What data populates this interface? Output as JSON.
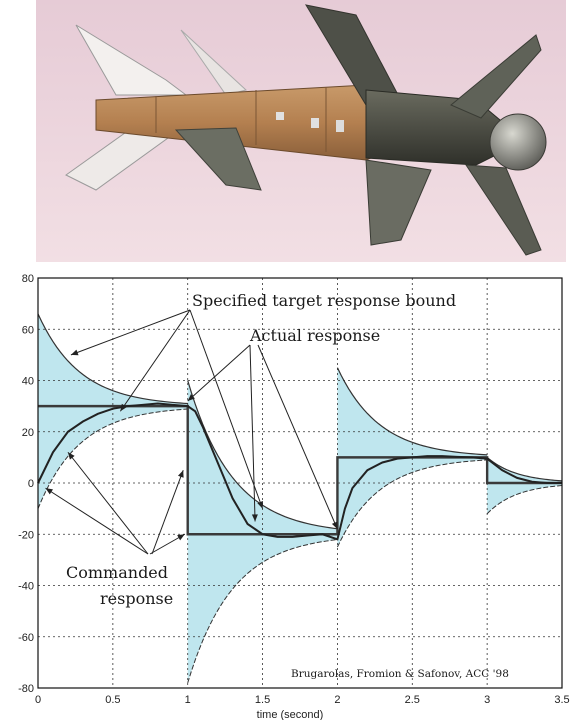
{
  "photo": {
    "subject": "missile",
    "sky_color": "#e8cdd6",
    "body_color": "#b98a5c",
    "nose_color": "#4a4a3e",
    "fin_color": "#5b5f55"
  },
  "chart_data": {
    "type": "line",
    "xlabel": "time (second)",
    "ylabel": "",
    "xlim": [
      0,
      3.5
    ],
    "ylim": [
      -80,
      80
    ],
    "x_ticks": [
      0,
      0.5,
      1,
      1.5,
      2,
      2.5,
      3,
      3.5
    ],
    "x_tick_labels": [
      "0",
      "0.5",
      "1",
      "1.5",
      "2",
      "2.5",
      "3",
      "3.5"
    ],
    "y_ticks": [
      80,
      60,
      40,
      20,
      0,
      -20,
      -40,
      -60,
      -80
    ],
    "y_tick_labels": [
      "80",
      "60",
      "40",
      "20",
      "0",
      "-20",
      "-40",
      "-60",
      "-80"
    ],
    "grid": true,
    "colors": {
      "band": "#bfe6ee",
      "line": "#3a3a3a"
    },
    "commanded": [
      {
        "x": [
          0,
          1
        ],
        "y": 30
      },
      {
        "x": [
          1,
          2
        ],
        "y": -20
      },
      {
        "x": [
          2,
          3
        ],
        "y": 10
      },
      {
        "x": [
          3,
          3.5
        ],
        "y": 0
      }
    ],
    "bound_segments": [
      {
        "t0": 0,
        "t1": 1,
        "y0": 0,
        "r": 30,
        "upper0": 66,
        "lower0": -10,
        "tau": 0.28
      },
      {
        "t0": 1,
        "t1": 2,
        "y0": 30,
        "r": -20,
        "upper0": 40,
        "lower0": -78,
        "tau": 0.3
      },
      {
        "t0": 2,
        "t1": 3,
        "y0": -20,
        "r": 10,
        "upper0": 45,
        "lower0": -25,
        "tau": 0.28
      },
      {
        "t0": 3,
        "t1": 3.5,
        "y0": 10,
        "r": 0,
        "upper0": 10,
        "lower0": -12,
        "tau": 0.2
      }
    ],
    "actual_response": {
      "x": [
        0,
        0.05,
        0.1,
        0.2,
        0.3,
        0.4,
        0.5,
        0.6,
        0.7,
        0.8,
        0.9,
        1.0,
        1.05,
        1.1,
        1.2,
        1.3,
        1.4,
        1.5,
        1.6,
        1.7,
        1.8,
        1.9,
        2.0,
        2.05,
        2.1,
        2.2,
        2.3,
        2.4,
        2.5,
        2.6,
        2.7,
        2.8,
        2.9,
        3.0,
        3.1,
        3.2,
        3.3,
        3.4,
        3.5
      ],
      "y": [
        0,
        6,
        12,
        20,
        24,
        27,
        29,
        30,
        30.5,
        31,
        30.5,
        30,
        28,
        22,
        8,
        -6,
        -16,
        -20,
        -21,
        -21,
        -20.5,
        -20,
        -22,
        -10,
        -2,
        5,
        8,
        9.5,
        10,
        10.5,
        10.5,
        10.2,
        10,
        9.5,
        5,
        2,
        0.5,
        0,
        0
      ]
    },
    "annotations": [
      "Specified target response bound",
      "Actual response",
      "Commanded",
      "response"
    ],
    "credit": "Brugarolas, Fromion & Safonov, ACC '98"
  }
}
